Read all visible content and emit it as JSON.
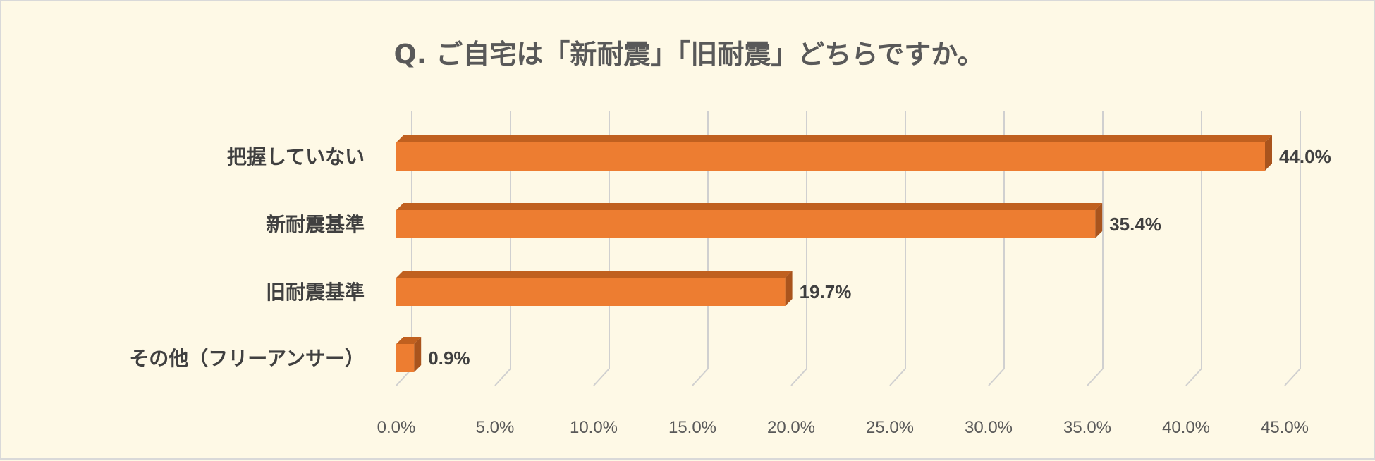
{
  "chart_data": {
    "type": "bar",
    "orientation": "horizontal",
    "title": "Q. ご自宅は「新耐震」「旧耐震」どちらですか。",
    "categories": [
      "把握していない",
      "新耐震基準",
      "旧耐震基準",
      "その他（フリーアンサー）"
    ],
    "values": [
      44.0,
      35.4,
      19.7,
      0.9
    ],
    "value_labels": [
      "44.0%",
      "35.4%",
      "19.7%",
      "0.9%"
    ],
    "xlim": [
      0,
      45
    ],
    "x_ticks": [
      "0.0%",
      "5.0%",
      "10.0%",
      "15.0%",
      "20.0%",
      "25.0%",
      "30.0%",
      "35.0%",
      "40.0%",
      "45.0%"
    ],
    "grid": true,
    "bar_color": "#ed7d31",
    "bar_side_color": "#a9541d",
    "bar_top_color": "#c0601f"
  }
}
